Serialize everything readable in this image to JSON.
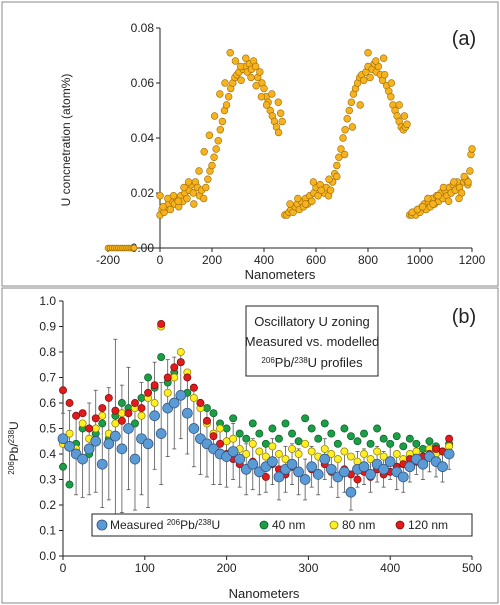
{
  "chart_data": [
    {
      "panel_label": "(a)",
      "type": "scatter",
      "xlabel": "Nanometers",
      "ylabel": "U concnetration (atom%)",
      "xlim": [
        -200,
        1200
      ],
      "ylim": [
        0,
        0.08
      ],
      "xticks": [
        -200,
        0,
        200,
        400,
        600,
        800,
        1000,
        1200
      ],
      "yticks": [
        0.0,
        0.02,
        0.04,
        0.06,
        0.08
      ],
      "ytick_labels": [
        "0.00",
        "0.02",
        "0.04",
        "0.06",
        "0.08"
      ],
      "grid": false,
      "colors": {
        "marker": "#f7b21f",
        "edge": "#9a6a00",
        "baseline": "#9a6a00"
      },
      "series": [
        {
          "x": [
            -200,
            -192,
            -184,
            -176,
            -168,
            -160,
            -152,
            -144,
            -136,
            -128,
            -120,
            -112,
            -104,
            -100
          ],
          "y": [
            0,
            0,
            0,
            0,
            0,
            0,
            0,
            0,
            0,
            0,
            0,
            0,
            0,
            0
          ]
        },
        {
          "x": [
            0,
            8,
            16,
            24,
            32,
            40,
            48,
            56,
            64,
            72,
            80,
            88,
            96,
            104,
            112,
            120,
            128,
            136,
            144,
            152,
            160,
            168,
            176,
            184,
            192,
            200,
            208,
            216,
            224,
            232,
            240,
            248,
            256,
            264,
            272,
            280,
            288,
            296,
            304,
            312,
            320,
            328,
            336,
            344,
            352,
            360,
            368,
            376,
            384,
            392,
            400,
            408,
            416,
            424,
            432,
            440,
            448,
            456,
            464,
            470,
            0,
            12,
            30,
            52,
            70,
            92,
            110,
            130,
            150,
            170,
            190,
            210,
            230,
            250,
            270,
            290,
            310,
            330,
            350,
            370,
            390,
            410,
            430,
            455
          ],
          "y": [
            0.012,
            0.014,
            0.013,
            0.015,
            0.016,
            0.014,
            0.017,
            0.016,
            0.018,
            0.015,
            0.019,
            0.017,
            0.02,
            0.018,
            0.021,
            0.023,
            0.02,
            0.024,
            0.022,
            0.019,
            0.021,
            0.018,
            0.022,
            0.025,
            0.028,
            0.03,
            0.033,
            0.036,
            0.039,
            0.043,
            0.046,
            0.05,
            0.052,
            0.055,
            0.058,
            0.06,
            0.062,
            0.063,
            0.064,
            0.061,
            0.065,
            0.066,
            0.064,
            0.067,
            0.065,
            0.068,
            0.066,
            0.062,
            0.064,
            0.06,
            0.058,
            0.055,
            0.053,
            0.05,
            0.048,
            0.046,
            0.044,
            0.042,
            0.049,
            0.046,
            0.019,
            0.015,
            0.018,
            0.019,
            0.017,
            0.022,
            0.024,
            0.016,
            0.028,
            0.035,
            0.041,
            0.048,
            0.056,
            0.06,
            0.071,
            0.068,
            0.066,
            0.069,
            0.062,
            0.059,
            0.055,
            0.052,
            0.056,
            0.053
          ]
        },
        {
          "x": [
            480,
            488,
            496,
            504,
            512,
            520,
            528,
            536,
            544,
            552,
            560,
            568,
            576,
            584,
            592,
            600,
            608,
            616,
            624,
            632,
            640,
            648,
            656,
            664,
            672,
            680,
            688,
            696,
            704,
            712,
            720,
            728,
            736,
            744,
            752,
            760,
            768,
            776,
            784,
            792,
            800,
            808,
            816,
            824,
            832,
            840,
            848,
            856,
            864,
            872,
            880,
            888,
            896,
            904,
            912,
            920,
            928,
            936,
            944,
            950,
            500,
            530,
            560,
            590,
            620,
            650,
            680,
            710,
            740,
            770,
            800,
            830,
            860,
            890,
            920,
            940
          ],
          "y": [
            0.012,
            0.012,
            0.013,
            0.014,
            0.013,
            0.015,
            0.016,
            0.014,
            0.017,
            0.015,
            0.018,
            0.016,
            0.019,
            0.017,
            0.02,
            0.022,
            0.019,
            0.023,
            0.021,
            0.02,
            0.022,
            0.019,
            0.021,
            0.024,
            0.027,
            0.03,
            0.033,
            0.036,
            0.04,
            0.043,
            0.047,
            0.05,
            0.053,
            0.056,
            0.058,
            0.06,
            0.062,
            0.063,
            0.061,
            0.064,
            0.066,
            0.062,
            0.065,
            0.067,
            0.064,
            0.066,
            0.063,
            0.061,
            0.063,
            0.059,
            0.057,
            0.055,
            0.052,
            0.05,
            0.048,
            0.046,
            0.044,
            0.043,
            0.044,
            0.045,
            0.016,
            0.018,
            0.016,
            0.024,
            0.021,
            0.025,
            0.026,
            0.034,
            0.044,
            0.052,
            0.071,
            0.068,
            0.069,
            0.06,
            0.052,
            0.048
          ]
        },
        {
          "x": [
            960,
            968,
            976,
            984,
            992,
            1000,
            1008,
            1016,
            1024,
            1032,
            1040,
            1048,
            1056,
            1064,
            1072,
            1080,
            1088,
            1096,
            1104,
            1112,
            1120,
            1128,
            1136,
            1144,
            1152,
            1160,
            1168,
            1176,
            1184,
            1192,
            1196,
            1200,
            970,
            990,
            1010,
            1030,
            1050,
            1070,
            1090,
            1110,
            1130,
            1150,
            1170,
            1185
          ],
          "y": [
            0.012,
            0.012,
            0.013,
            0.012,
            0.014,
            0.013,
            0.015,
            0.016,
            0.014,
            0.017,
            0.015,
            0.018,
            0.016,
            0.019,
            0.017,
            0.02,
            0.018,
            0.021,
            0.019,
            0.022,
            0.02,
            0.023,
            0.021,
            0.024,
            0.022,
            0.02,
            0.024,
            0.025,
            0.023,
            0.028,
            0.034,
            0.036,
            0.013,
            0.014,
            0.015,
            0.018,
            0.016,
            0.019,
            0.022,
            0.017,
            0.024,
            0.018,
            0.026,
            0.024
          ]
        }
      ]
    },
    {
      "panel_label": "(b)",
      "type": "scatter",
      "xlabel": "Nanometers",
      "ylabel": "206Pb/238U",
      "xlim": [
        0,
        500
      ],
      "ylim": [
        0,
        1.0
      ],
      "xticks": [
        0,
        100,
        200,
        300,
        400,
        500
      ],
      "yticks": [
        0.0,
        0.1,
        0.2,
        0.3,
        0.4,
        0.5,
        0.6,
        0.7,
        0.8,
        0.9,
        1.0
      ],
      "ytick_labels": [
        "0.0",
        "0.1",
        "0.2",
        "0.3",
        "0.4",
        "0.5",
        "0.6",
        "0.7",
        "0.8",
        "0.9",
        "1.0"
      ],
      "grid": false,
      "annotation": [
        "Oscillatory U zoning",
        "Measured vs. modelled",
        "206Pb/238U profiles"
      ],
      "legend_placement": "bottom",
      "series": [
        {
          "name": "Measured 206Pb/238U",
          "color": "#5b9bd5",
          "x": [
            0,
            8,
            16,
            24,
            32,
            40,
            48,
            56,
            64,
            72,
            80,
            88,
            96,
            104,
            112,
            120,
            128,
            136,
            144,
            152,
            160,
            168,
            176,
            184,
            192,
            200,
            208,
            216,
            224,
            232,
            240,
            248,
            256,
            264,
            272,
            280,
            288,
            296,
            304,
            312,
            320,
            328,
            336,
            344,
            352,
            360,
            368,
            376,
            384,
            392,
            400,
            408,
            416,
            424,
            432,
            440,
            448,
            456,
            464,
            472
          ],
          "y": [
            0.46,
            0.43,
            0.4,
            0.38,
            0.42,
            0.45,
            0.36,
            0.44,
            0.47,
            0.42,
            0.5,
            0.38,
            0.46,
            0.44,
            0.55,
            0.48,
            0.58,
            0.6,
            0.63,
            0.56,
            0.5,
            0.46,
            0.44,
            0.42,
            0.4,
            0.39,
            0.41,
            0.38,
            0.34,
            0.36,
            0.33,
            0.35,
            0.37,
            0.31,
            0.34,
            0.36,
            0.33,
            0.3,
            0.35,
            0.32,
            0.38,
            0.34,
            0.31,
            0.33,
            0.25,
            0.34,
            0.35,
            0.32,
            0.36,
            0.34,
            0.37,
            0.33,
            0.31,
            0.35,
            0.38,
            0.36,
            0.39,
            0.37,
            0.35,
            0.4
          ],
          "err": [
            0.1,
            0.14,
            0.16,
            0.15,
            0.18,
            0.2,
            0.17,
            0.22,
            0.38,
            0.25,
            0.24,
            0.2,
            0.22,
            0.25,
            0.21,
            0.2,
            0.19,
            0.18,
            0.17,
            0.16,
            0.15,
            0.14,
            0.13,
            0.14,
            0.12,
            0.12,
            0.11,
            0.11,
            0.1,
            0.1,
            0.09,
            0.1,
            0.09,
            0.09,
            0.09,
            0.08,
            0.09,
            0.08,
            0.08,
            0.08,
            0.08,
            0.07,
            0.08,
            0.08,
            0.07,
            0.07,
            0.07,
            0.07,
            0.07,
            0.07,
            0.07,
            0.07,
            0.06,
            0.06,
            0.06,
            0.06,
            0.06,
            0.06,
            0.06,
            0.06
          ]
        },
        {
          "name": "40 nm",
          "color": "#1a9e46",
          "x": [
            0,
            8,
            16,
            24,
            32,
            40,
            48,
            56,
            64,
            72,
            80,
            88,
            96,
            104,
            112,
            120,
            128,
            136,
            144,
            152,
            160,
            168,
            176,
            184,
            192,
            200,
            208,
            216,
            224,
            232,
            240,
            248,
            256,
            264,
            272,
            280,
            288,
            296,
            304,
            312,
            320,
            328,
            336,
            344,
            352,
            360,
            368,
            376,
            384,
            392,
            400,
            408,
            416,
            424,
            432,
            440,
            448,
            456,
            464,
            472
          ],
          "y": [
            0.35,
            0.28,
            0.44,
            0.5,
            0.4,
            0.48,
            0.52,
            0.46,
            0.55,
            0.6,
            0.58,
            0.52,
            0.62,
            0.7,
            0.66,
            0.78,
            0.68,
            0.72,
            0.76,
            0.64,
            0.66,
            0.6,
            0.58,
            0.56,
            0.52,
            0.5,
            0.54,
            0.48,
            0.46,
            0.52,
            0.48,
            0.44,
            0.5,
            0.46,
            0.52,
            0.48,
            0.45,
            0.54,
            0.5,
            0.46,
            0.52,
            0.48,
            0.44,
            0.5,
            0.47,
            0.45,
            0.48,
            0.44,
            0.5,
            0.46,
            0.44,
            0.47,
            0.43,
            0.46,
            0.44,
            0.42,
            0.45,
            0.43,
            0.41,
            0.44
          ]
        },
        {
          "name": "80 nm",
          "color": "#ffee22",
          "x": [
            0,
            8,
            16,
            24,
            32,
            40,
            48,
            56,
            64,
            72,
            80,
            88,
            96,
            104,
            112,
            120,
            128,
            136,
            144,
            152,
            160,
            168,
            176,
            184,
            192,
            200,
            208,
            216,
            224,
            232,
            240,
            248,
            256,
            264,
            272,
            280,
            288,
            296,
            304,
            312,
            320,
            328,
            336,
            344,
            352,
            360,
            368,
            376,
            384,
            392,
            400,
            408,
            416,
            424,
            432,
            440,
            448,
            456,
            464,
            472
          ],
          "y": [
            0.44,
            0.48,
            0.42,
            0.52,
            0.46,
            0.5,
            0.55,
            0.48,
            0.52,
            0.56,
            0.5,
            0.58,
            0.55,
            0.62,
            0.6,
            0.9,
            0.64,
            0.7,
            0.8,
            0.72,
            0.62,
            0.58,
            0.52,
            0.48,
            0.5,
            0.45,
            0.46,
            0.42,
            0.4,
            0.44,
            0.41,
            0.39,
            0.43,
            0.4,
            0.38,
            0.42,
            0.4,
            0.44,
            0.41,
            0.39,
            0.42,
            0.4,
            0.38,
            0.41,
            0.39,
            0.37,
            0.4,
            0.38,
            0.41,
            0.39,
            0.37,
            0.4,
            0.38,
            0.4,
            0.41,
            0.39,
            0.42,
            0.4,
            0.41,
            0.43
          ]
        },
        {
          "name": "120 nm",
          "color": "#e31a1c",
          "x": [
            0,
            8,
            16,
            24,
            32,
            40,
            48,
            56,
            64,
            72,
            80,
            88,
            96,
            104,
            112,
            120,
            128,
            136,
            144,
            152,
            160,
            168,
            176,
            184,
            192,
            200,
            208,
            216,
            224,
            232,
            240,
            248,
            256,
            264,
            272,
            280,
            288,
            296,
            304,
            312,
            320,
            328,
            336,
            344,
            352,
            360,
            368,
            376,
            384,
            392,
            400,
            408,
            416,
            424,
            432,
            440,
            448,
            456,
            464,
            472
          ],
          "y": [
            0.65,
            0.6,
            0.55,
            0.56,
            0.5,
            0.54,
            0.58,
            0.62,
            0.57,
            0.53,
            0.56,
            0.6,
            0.58,
            0.64,
            0.67,
            0.91,
            0.7,
            0.74,
            0.76,
            0.7,
            0.66,
            0.6,
            0.53,
            0.47,
            0.44,
            0.4,
            0.38,
            0.36,
            0.34,
            0.37,
            0.33,
            0.31,
            0.36,
            0.34,
            0.32,
            0.35,
            0.33,
            0.3,
            0.34,
            0.32,
            0.36,
            0.33,
            0.31,
            0.34,
            0.32,
            0.3,
            0.33,
            0.31,
            0.34,
            0.32,
            0.33,
            0.35,
            0.36,
            0.38,
            0.37,
            0.39,
            0.4,
            0.42,
            0.41,
            0.46
          ]
        }
      ]
    }
  ]
}
